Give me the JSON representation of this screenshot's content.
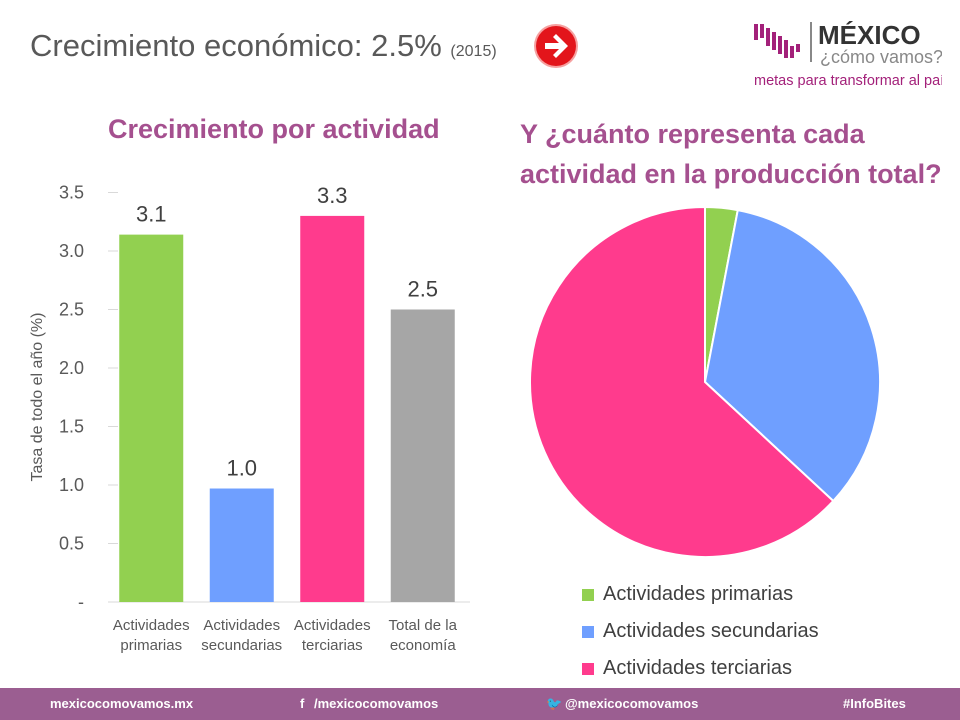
{
  "header": {
    "title": "Crecimiento económico: 2.5%",
    "year": "(2015)",
    "arrow_icon": "arrow-right-icon"
  },
  "logo": {
    "name": "MÉXICO",
    "tagline": "¿cómo vamos?",
    "slogan": "metas para transformar al país"
  },
  "chart_data": [
    {
      "type": "bar",
      "title": "Crecimiento por actividad",
      "ylabel": "Tasa de todo el año (%)",
      "xlabel": "",
      "categories": [
        [
          "Actividades",
          "primarias"
        ],
        [
          "Actividades",
          "secundarias"
        ],
        [
          "Actividades",
          "terciarias"
        ],
        [
          "Total de la",
          "economía"
        ]
      ],
      "values": [
        3.14,
        0.97,
        3.3,
        2.5
      ],
      "data_labels": [
        "3.1",
        "1.0",
        "3.3",
        "2.5"
      ],
      "ylim": [
        0,
        3.5
      ],
      "yticks": [
        0,
        0.5,
        1,
        1.5,
        2,
        2.5,
        3,
        3.5
      ],
      "ytick_labels": [
        "-",
        "0.5",
        "1.0",
        "1.5",
        "2.0",
        "2.5",
        "3.0",
        "3.5"
      ],
      "grid": false,
      "colors": [
        "#92d050",
        "#6f9fff",
        "#ff3b8d",
        "#a6a6a6"
      ]
    },
    {
      "type": "pie",
      "title": "Y ¿cuánto representa cada actividad en la producción total?",
      "title_lines": [
        "Y ¿cuánto representa cada",
        "actividad en la producción total?"
      ],
      "categories": [
        "Actividades primarias",
        "Actividades secundarias",
        "Actividades terciarias"
      ],
      "values": [
        3.0,
        33.9,
        63.1
      ],
      "colors": [
        "#92d050",
        "#6f9fff",
        "#ff3b8d"
      ],
      "legend": "bottom"
    }
  ],
  "footer": {
    "site": "mexicocomovamos.mx",
    "facebook": "/mexicocomovamos",
    "twitter": "@mexicocomovamos",
    "tag": "#InfoBites"
  }
}
